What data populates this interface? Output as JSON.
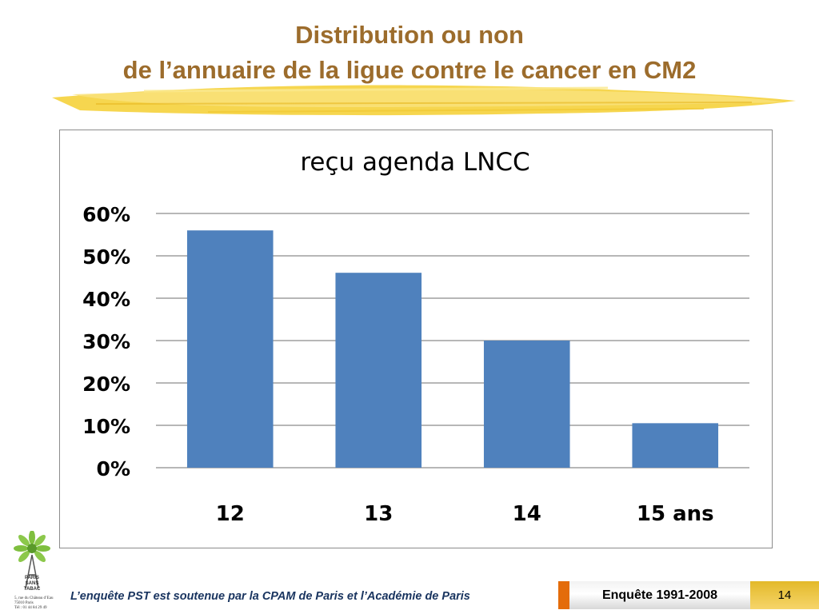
{
  "slide": {
    "title_line1": "Distribution ou non",
    "title_line2": "de l’annuaire de la ligue contre le cancer en CM2",
    "footer_note": "L’enquête PST est soutenue par la CPAM de Paris et l’Académie de Paris",
    "footer_label": "Enquête 1991-2008",
    "page_number": "14",
    "logo_lines": [
      "PARIS",
      "SANS",
      "TABAC"
    ],
    "logo_address": [
      "5, rue du Château d’Eau",
      "75010 Paris",
      "Tél : 01 44 84 29 49"
    ]
  },
  "colors": {
    "title": "#9c6c2c",
    "bar": "#4f81bd",
    "brush": "#f5d23c",
    "footer_accent": "#e46c0a",
    "footer_gold": "#f0c842"
  },
  "chart_data": {
    "type": "bar",
    "title": "reçu agenda  LNCC",
    "categories": [
      "12",
      "13",
      "14",
      "15 ans"
    ],
    "values": [
      0.56,
      0.46,
      0.3,
      0.105
    ],
    "ylim": [
      0,
      0.6
    ],
    "yticks": [
      "0%",
      "10%",
      "20%",
      "30%",
      "40%",
      "50%",
      "60%"
    ],
    "grid": true,
    "legend": "none"
  }
}
